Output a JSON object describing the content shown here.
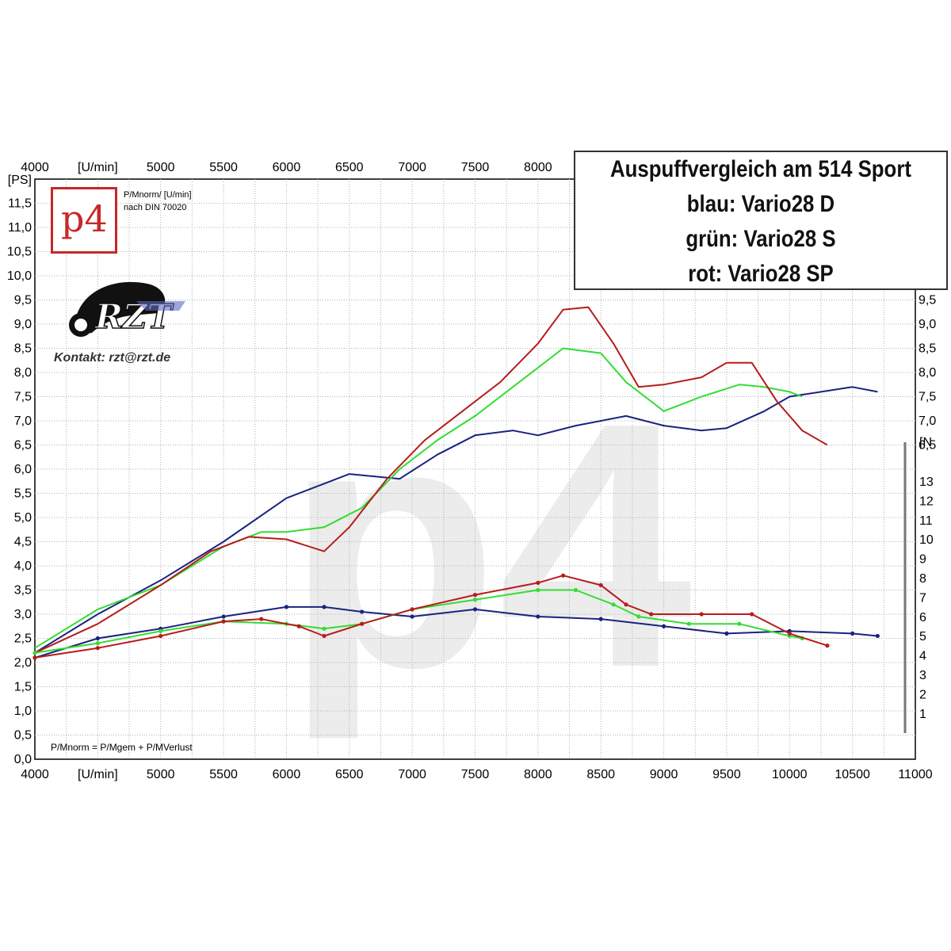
{
  "title_lines": [
    "Auspuffvergleich am 514 Sport",
    "blau: Vario28 D",
    "grün: Vario28 S",
    "rot: Vario28 SP"
  ],
  "logo": {
    "mark": "p4",
    "norm_line1": "P/Mnorm/ [U/min]",
    "norm_line2": "nach DIN 70020"
  },
  "contact": "Kontakt: rzt@rzt.de",
  "formula": "P/Mnorm = P/Mgem + P/MVerlust",
  "colors": {
    "blue": "#1a237e",
    "green": "#33dd33",
    "red": "#b71c1c",
    "grid": "#b0b0b0"
  },
  "chart_data": {
    "type": "line",
    "x_label": "[U/min]",
    "y_label": "[PS]",
    "x_range": [
      4000,
      11000
    ],
    "y_range": [
      0,
      12
    ],
    "x_ticks": [
      "4000",
      "5000",
      "5500",
      "6000",
      "6500",
      "7000",
      "7500",
      "8000",
      "8500",
      "9000",
      "9500",
      "10000",
      "10500",
      "11000"
    ],
    "top_x_ticks": [
      "4000",
      "5000",
      "5500",
      "6000",
      "6500",
      "7000",
      "7500",
      "8000"
    ],
    "y_ticks": [
      "0,0",
      "0,5",
      "1,0",
      "1,5",
      "2,0",
      "2,5",
      "3,0",
      "3,5",
      "4,0",
      "4,5",
      "5,0",
      "5,5",
      "6,0",
      "6,5",
      "7,0",
      "7,5",
      "8,0",
      "8,5",
      "9,0",
      "9,5",
      "10,0",
      "10,5",
      "11,0",
      "11,5"
    ],
    "right_y_ticks": [
      "9,5",
      "9,0",
      "8,5",
      "8,0",
      "7,5",
      "7,0",
      "6,5"
    ],
    "torque_label": "[N",
    "torque_ticks": [
      "13",
      "12",
      "11",
      "10",
      "9",
      "8",
      "7",
      "6",
      "5",
      "4",
      "3",
      "2",
      "1"
    ],
    "power_series": [
      {
        "name": "blau: Vario28 D",
        "color": "#1a237e",
        "points": [
          [
            4000,
            2.2
          ],
          [
            4500,
            3.0
          ],
          [
            5000,
            3.7
          ],
          [
            5500,
            4.5
          ],
          [
            6000,
            5.4
          ],
          [
            6300,
            5.7
          ],
          [
            6500,
            5.9
          ],
          [
            6900,
            5.8
          ],
          [
            7200,
            6.3
          ],
          [
            7500,
            6.7
          ],
          [
            7800,
            6.8
          ],
          [
            8000,
            6.7
          ],
          [
            8300,
            6.9
          ],
          [
            8700,
            7.1
          ],
          [
            9000,
            6.9
          ],
          [
            9300,
            6.8
          ],
          [
            9500,
            6.85
          ],
          [
            9800,
            7.2
          ],
          [
            10000,
            7.5
          ],
          [
            10500,
            7.7
          ],
          [
            10700,
            7.6
          ]
        ]
      },
      {
        "name": "grün: Vario28 S",
        "color": "#33dd33",
        "points": [
          [
            4000,
            2.3
          ],
          [
            4500,
            3.1
          ],
          [
            5000,
            3.6
          ],
          [
            5500,
            4.4
          ],
          [
            5800,
            4.7
          ],
          [
            6000,
            4.7
          ],
          [
            6300,
            4.8
          ],
          [
            6600,
            5.2
          ],
          [
            6900,
            6.0
          ],
          [
            7200,
            6.6
          ],
          [
            7500,
            7.1
          ],
          [
            7800,
            7.7
          ],
          [
            8000,
            8.1
          ],
          [
            8200,
            8.5
          ],
          [
            8500,
            8.4
          ],
          [
            8700,
            7.8
          ],
          [
            9000,
            7.2
          ],
          [
            9300,
            7.5
          ],
          [
            9600,
            7.75
          ],
          [
            9800,
            7.7
          ],
          [
            10000,
            7.6
          ],
          [
            10100,
            7.5
          ]
        ]
      },
      {
        "name": "rot: Vario28 SP",
        "color": "#b71c1c",
        "points": [
          [
            4000,
            2.2
          ],
          [
            4500,
            2.8
          ],
          [
            5000,
            3.6
          ],
          [
            5400,
            4.3
          ],
          [
            5700,
            4.6
          ],
          [
            6000,
            4.55
          ],
          [
            6300,
            4.3
          ],
          [
            6500,
            4.8
          ],
          [
            6800,
            5.8
          ],
          [
            7100,
            6.6
          ],
          [
            7400,
            7.2
          ],
          [
            7700,
            7.8
          ],
          [
            8000,
            8.6
          ],
          [
            8200,
            9.3
          ],
          [
            8400,
            9.35
          ],
          [
            8600,
            8.6
          ],
          [
            8800,
            7.7
          ],
          [
            9000,
            7.75
          ],
          [
            9300,
            7.9
          ],
          [
            9500,
            8.2
          ],
          [
            9700,
            8.2
          ],
          [
            9900,
            7.4
          ],
          [
            10100,
            6.8
          ],
          [
            10300,
            6.5
          ]
        ]
      }
    ],
    "torque_series": [
      {
        "name": "blau: Vario28 D",
        "color": "#1a237e",
        "points": [
          [
            4000,
            2.1
          ],
          [
            4500,
            2.5
          ],
          [
            5000,
            2.7
          ],
          [
            5500,
            2.95
          ],
          [
            6000,
            3.15
          ],
          [
            6300,
            3.15
          ],
          [
            6600,
            3.05
          ],
          [
            7000,
            2.95
          ],
          [
            7500,
            3.1
          ],
          [
            8000,
            2.95
          ],
          [
            8500,
            2.9
          ],
          [
            9000,
            2.75
          ],
          [
            9500,
            2.6
          ],
          [
            10000,
            2.65
          ],
          [
            10500,
            2.6
          ],
          [
            10700,
            2.55
          ]
        ]
      },
      {
        "name": "grün: Vario28 S",
        "color": "#33dd33",
        "points": [
          [
            4000,
            2.2
          ],
          [
            4500,
            2.4
          ],
          [
            5000,
            2.65
          ],
          [
            5500,
            2.85
          ],
          [
            6000,
            2.8
          ],
          [
            6300,
            2.7
          ],
          [
            6600,
            2.8
          ],
          [
            7000,
            3.1
          ],
          [
            7500,
            3.3
          ],
          [
            8000,
            3.5
          ],
          [
            8300,
            3.5
          ],
          [
            8600,
            3.2
          ],
          [
            8800,
            2.95
          ],
          [
            9200,
            2.8
          ],
          [
            9600,
            2.8
          ],
          [
            10000,
            2.55
          ],
          [
            10100,
            2.5
          ]
        ]
      },
      {
        "name": "rot: Vario28 SP",
        "color": "#b71c1c",
        "points": [
          [
            4000,
            2.1
          ],
          [
            4500,
            2.3
          ],
          [
            5000,
            2.55
          ],
          [
            5500,
            2.85
          ],
          [
            5800,
            2.9
          ],
          [
            6100,
            2.75
          ],
          [
            6300,
            2.55
          ],
          [
            6600,
            2.8
          ],
          [
            7000,
            3.1
          ],
          [
            7500,
            3.4
          ],
          [
            8000,
            3.65
          ],
          [
            8200,
            3.8
          ],
          [
            8500,
            3.6
          ],
          [
            8700,
            3.2
          ],
          [
            8900,
            3.0
          ],
          [
            9300,
            3.0
          ],
          [
            9700,
            3.0
          ],
          [
            10000,
            2.6
          ],
          [
            10300,
            2.35
          ]
        ]
      }
    ]
  }
}
